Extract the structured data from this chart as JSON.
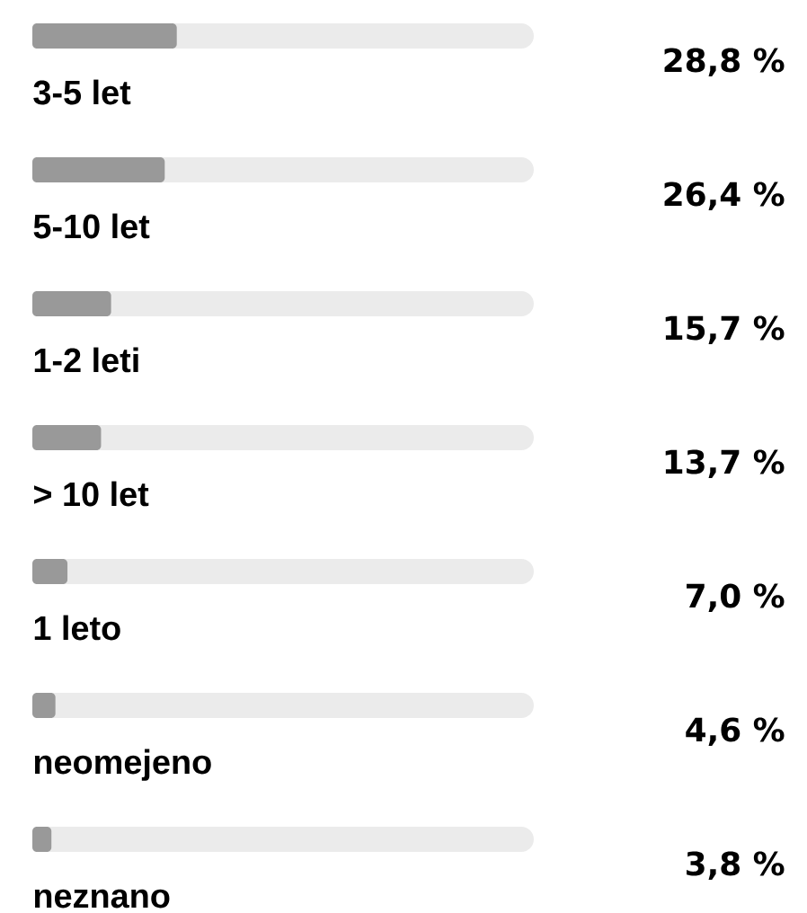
{
  "chart_data": {
    "type": "bar",
    "orientation": "horizontal",
    "categories": [
      "3-5 let",
      "5-10 let",
      "1-2 leti",
      "> 10 let",
      "1 leto",
      "neomejeno",
      "neznano"
    ],
    "values": [
      28.8,
      26.4,
      15.7,
      13.7,
      7.0,
      4.6,
      3.8
    ],
    "value_labels": [
      "28,8 %",
      "26,4 %",
      "15,7 %",
      "13,7 %",
      "7,0 %",
      "4,6 %",
      "3,8 %"
    ],
    "color": "#999999",
    "xlim": [
      0,
      100
    ]
  }
}
